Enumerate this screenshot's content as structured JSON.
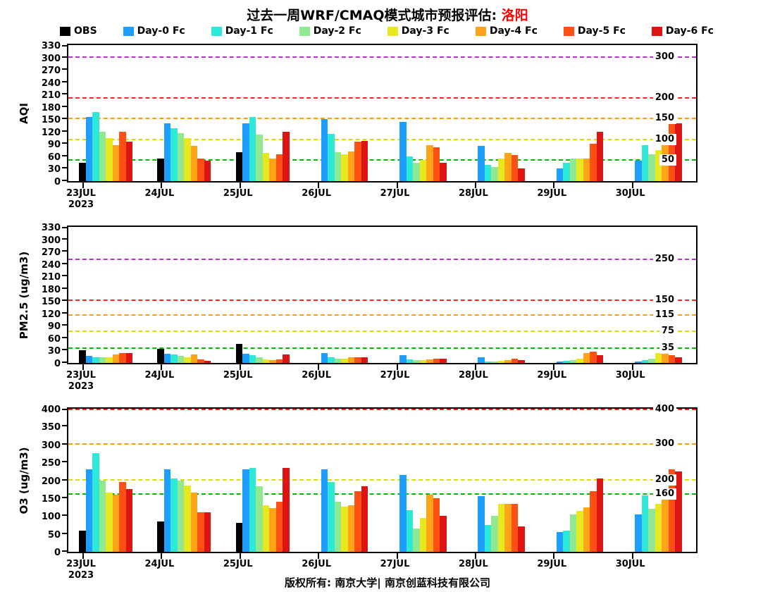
{
  "title": {
    "main": "过去一周WRF/CMAQ模式城市预报评估: ",
    "city": "洛阳"
  },
  "footer": "版权所有: 南京大学| 南京创蓝科技有限公司",
  "accent_color": "#FF0000",
  "legend": [
    {
      "label": "OBS",
      "color": "#000000"
    },
    {
      "label": "Day-0 Fc",
      "color": "#1E9FFF"
    },
    {
      "label": "Day-1 Fc",
      "color": "#2EE8D8"
    },
    {
      "label": "Day-2 Fc",
      "color": "#90E890"
    },
    {
      "label": "Day-3 Fc",
      "color": "#E8E820"
    },
    {
      "label": "Day-4 Fc",
      "color": "#FFA318"
    },
    {
      "label": "Day-5 Fc",
      "color": "#FF5014"
    },
    {
      "label": "Day-6 Fc",
      "color": "#DE1414"
    }
  ],
  "chart_data": [
    {
      "type": "bar",
      "title": "",
      "xlabel": "",
      "ylabel": "AQI",
      "ylim": [
        0,
        330
      ],
      "yticks": [
        0,
        30,
        60,
        90,
        120,
        150,
        180,
        210,
        240,
        270,
        300,
        330
      ],
      "grid": false,
      "legend_position": "top",
      "categories": [
        {
          "label": "23JUL",
          "sub": "2023"
        },
        {
          "label": "24JUL",
          "sub": ""
        },
        {
          "label": "25JUL",
          "sub": ""
        },
        {
          "label": "26JUL",
          "sub": ""
        },
        {
          "label": "27JUL",
          "sub": ""
        },
        {
          "label": "28JUL",
          "sub": ""
        },
        {
          "label": "29JUL",
          "sub": ""
        },
        {
          "label": "30JUL",
          "sub": ""
        }
      ],
      "series": [
        {
          "name": "OBS",
          "values": [
            45,
            55,
            70,
            null,
            null,
            null,
            null,
            null
          ]
        },
        {
          "name": "Day-0 Fc",
          "values": [
            155,
            140,
            140,
            150,
            143,
            85,
            30,
            50
          ]
        },
        {
          "name": "Day-1 Fc",
          "values": [
            168,
            128,
            155,
            115,
            60,
            40,
            45,
            88
          ]
        },
        {
          "name": "Day-2 Fc",
          "values": [
            120,
            117,
            113,
            70,
            45,
            35,
            55,
            65
          ]
        },
        {
          "name": "Day-3 Fc",
          "values": [
            104,
            105,
            68,
            65,
            52,
            55,
            55,
            75
          ]
        },
        {
          "name": "Day-4 Fc",
          "values": [
            88,
            85,
            55,
            72,
            88,
            68,
            55,
            105
          ]
        },
        {
          "name": "Day-5 Fc",
          "values": [
            120,
            55,
            65,
            95,
            82,
            63,
            90,
            150
          ]
        },
        {
          "name": "Day-6 Fc",
          "values": [
            95,
            50,
            120,
            98,
            45,
            30,
            120,
            140
          ]
        }
      ],
      "ref_lines": [
        {
          "value": 50,
          "label": "50",
          "color": "#00BB00"
        },
        {
          "value": 100,
          "label": "100",
          "color": "#DCDC00"
        },
        {
          "value": 150,
          "label": "150",
          "color": "#FF9C00"
        },
        {
          "value": 200,
          "label": "200",
          "color": "#FF2222"
        },
        {
          "value": 300,
          "label": "300",
          "color": "#B332C8"
        }
      ]
    },
    {
      "type": "bar",
      "title": "",
      "xlabel": "",
      "ylabel": "PM2.5 (ug/m3)",
      "ylim": [
        0,
        330
      ],
      "yticks": [
        0,
        30,
        60,
        90,
        120,
        150,
        180,
        210,
        240,
        270,
        300,
        330
      ],
      "grid": false,
      "legend_position": "top",
      "categories": [
        {
          "label": "23JUL",
          "sub": "2023"
        },
        {
          "label": "24JUL",
          "sub": ""
        },
        {
          "label": "25JUL",
          "sub": ""
        },
        {
          "label": "26JUL",
          "sub": ""
        },
        {
          "label": "27JUL",
          "sub": ""
        },
        {
          "label": "28JUL",
          "sub": ""
        },
        {
          "label": "29JUL",
          "sub": ""
        },
        {
          "label": "30JUL",
          "sub": ""
        }
      ],
      "series": [
        {
          "name": "OBS",
          "values": [
            30,
            34,
            47,
            null,
            null,
            null,
            null,
            null
          ]
        },
        {
          "name": "Day-0 Fc",
          "values": [
            17,
            22,
            22,
            24,
            18,
            14,
            4,
            4
          ]
        },
        {
          "name": "Day-1 Fc",
          "values": [
            14,
            20,
            19,
            14,
            9,
            4,
            5,
            7
          ]
        },
        {
          "name": "Day-2 Fc",
          "values": [
            14,
            17,
            14,
            11,
            7,
            4,
            7,
            11
          ]
        },
        {
          "name": "Day-3 Fc",
          "values": [
            14,
            14,
            9,
            11,
            7,
            5,
            10,
            24
          ]
        },
        {
          "name": "Day-4 Fc",
          "values": [
            20,
            21,
            7,
            13,
            9,
            7,
            24,
            33
          ]
        },
        {
          "name": "Day-5 Fc",
          "values": [
            24,
            8,
            9,
            14,
            11,
            11,
            27,
            18
          ]
        },
        {
          "name": "Day-6 Fc",
          "values": [
            24,
            5,
            20,
            14,
            11,
            7,
            18,
            14
          ]
        }
      ],
      "ref_lines": [
        {
          "value": 35,
          "label": "35",
          "color": "#00BB00"
        },
        {
          "value": 75,
          "label": "75",
          "color": "#DCDC00"
        },
        {
          "value": 115,
          "label": "115",
          "color": "#FF9C00"
        },
        {
          "value": 150,
          "label": "150",
          "color": "#FF2222"
        },
        {
          "value": 250,
          "label": "250",
          "color": "#B332C8"
        }
      ]
    },
    {
      "type": "bar",
      "title": "",
      "xlabel": "",
      "ylabel": "O3 (ug/m3)",
      "ylim": [
        0,
        400
      ],
      "yticks": [
        0,
        50,
        100,
        150,
        200,
        250,
        300,
        350,
        400
      ],
      "grid": false,
      "legend_position": "top",
      "categories": [
        {
          "label": "23JUL",
          "sub": "2023"
        },
        {
          "label": "24JUL",
          "sub": ""
        },
        {
          "label": "25JUL",
          "sub": ""
        },
        {
          "label": "26JUL",
          "sub": ""
        },
        {
          "label": "27JUL",
          "sub": ""
        },
        {
          "label": "28JUL",
          "sub": ""
        },
        {
          "label": "29JUL",
          "sub": ""
        },
        {
          "label": "30JUL",
          "sub": ""
        }
      ],
      "series": [
        {
          "name": "OBS",
          "values": [
            60,
            85,
            80,
            null,
            null,
            null,
            null,
            null
          ]
        },
        {
          "name": "Day-0 Fc",
          "values": [
            230,
            230,
            230,
            230,
            214,
            155,
            55,
            105
          ]
        },
        {
          "name": "Day-1 Fc",
          "values": [
            275,
            205,
            235,
            196,
            116,
            75,
            60,
            158
          ]
        },
        {
          "name": "Day-2 Fc",
          "values": [
            200,
            200,
            183,
            140,
            65,
            100,
            105,
            120
          ]
        },
        {
          "name": "Day-3 Fc",
          "values": [
            165,
            185,
            130,
            126,
            95,
            135,
            115,
            135
          ]
        },
        {
          "name": "Day-4 Fc",
          "values": [
            160,
            165,
            122,
            130,
            160,
            135,
            125,
            165
          ]
        },
        {
          "name": "Day-5 Fc",
          "values": [
            195,
            110,
            140,
            170,
            150,
            135,
            170,
            230
          ]
        },
        {
          "name": "Day-6 Fc",
          "values": [
            175,
            110,
            235,
            183,
            100,
            70,
            205,
            225
          ]
        }
      ],
      "ref_lines": [
        {
          "value": 160,
          "label": "160",
          "color": "#00BB00"
        },
        {
          "value": 200,
          "label": "200",
          "color": "#DCDC00"
        },
        {
          "value": 300,
          "label": "300",
          "color": "#FF9C00"
        },
        {
          "value": 400,
          "label": "400",
          "color": "#FF2222"
        }
      ]
    }
  ]
}
